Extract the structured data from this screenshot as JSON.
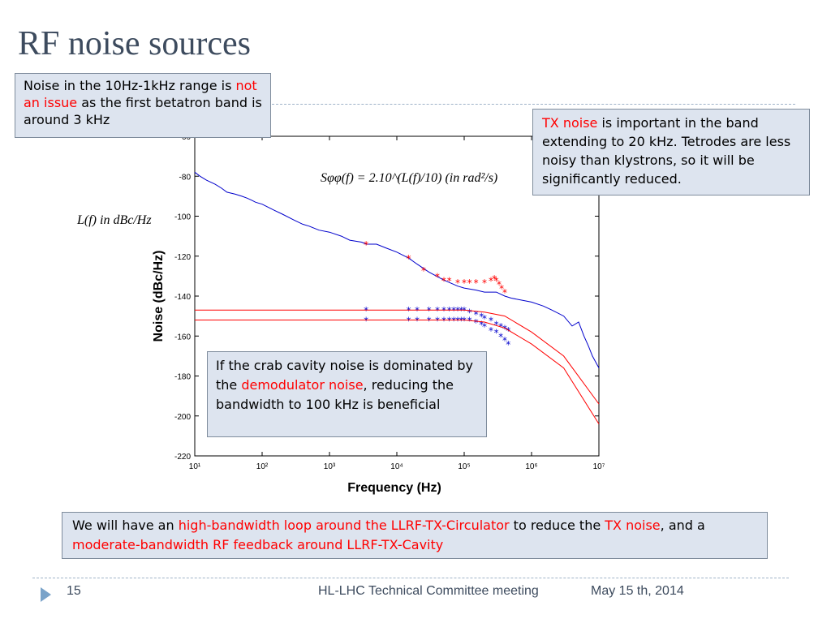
{
  "slide": {
    "title": "RF noise sources",
    "page_number": "15",
    "meeting": "HL-LHC Technical Committee meeting",
    "date": "May 15 th, 2014"
  },
  "boxes": {
    "noise_range": {
      "a": "Noise in the 10Hz-1kHz range is ",
      "b": "not an issue",
      "c": " as the first betatron band is around 3 kHz"
    },
    "tx_noise": {
      "a": "TX noise",
      "b": " is important in the band extending to 20 kHz. Tetrodes are less noisy than klystrons, so it will be significantly reduced."
    },
    "crab_cavity": {
      "a": "If the crab cavity noise is dominated by the ",
      "b": "demodulator noise",
      "c": ", reducing the bandwidth to 100 kHz is beneficial"
    },
    "bottom": {
      "a": "We will have an ",
      "b": "high-bandwidth loop around the LLRF-TX-Circulator",
      "c": " to reduce the ",
      "d": "TX noise",
      "e": ", and a ",
      "f": "moderate-bandwidth RF feedback around LLRF-TX-Cavity"
    }
  },
  "colors": {
    "accent_red": "#ff0000",
    "box_bg": "#dde4ef",
    "title": "#3d4b5e",
    "series_blue": "#0000cc",
    "series_red": "#ff0000"
  },
  "chart_data": {
    "type": "line",
    "xscale": "log",
    "xlim": [
      10,
      10000000
    ],
    "ylim": [
      -220,
      -60
    ],
    "xlabel": "Frequency (Hz)",
    "ylabel": "Noise (dBc/Hz)",
    "x_tick_labels": [
      "10¹",
      "10²",
      "10³",
      "10⁴",
      "10⁵",
      "10⁶",
      "10⁷"
    ],
    "y_tick_labels": [
      "-60",
      "-80",
      "-100",
      "-120",
      "-140",
      "-160",
      "-180",
      "-200",
      "-220"
    ],
    "formulas": {
      "sphi": "Sφφ(f) = 2.10^(L(f)/10) (in rad²/s)",
      "lf": "L(f) in dBc/Hz"
    },
    "series": [
      {
        "color": "#0000cc",
        "x": [
          10,
          12,
          15,
          20,
          25,
          30,
          40,
          50,
          60,
          70,
          80,
          100,
          150,
          200,
          300,
          400,
          500,
          700,
          1000,
          1500,
          2000,
          3000,
          3500,
          5000,
          7000,
          10000,
          15000,
          20000,
          30000,
          50000,
          80000,
          100000,
          150000,
          200000,
          300000,
          400000,
          500000,
          700000,
          1000000,
          1500000,
          2000000,
          3000000,
          4000000,
          5000000,
          6000000,
          7000000,
          8000000,
          10000000
        ],
        "y": [
          -78,
          -80,
          -82,
          -84,
          -86,
          -88,
          -89,
          -90,
          -91,
          -92,
          -93,
          -94,
          -97,
          -99,
          -102,
          -104,
          -105,
          -107,
          -108,
          -110,
          -112,
          -113,
          -114,
          -114,
          -116,
          -118,
          -121,
          -124,
          -128,
          -132,
          -135,
          -136,
          -137,
          -138,
          -138,
          -140,
          -141,
          -142,
          -143,
          -145,
          -147,
          -150,
          -155,
          -153,
          -160,
          -165,
          -170,
          -176
        ]
      },
      {
        "color": "#ff0000",
        "marker": "*",
        "x": [
          3500,
          15000,
          25000,
          40000,
          50000,
          60000,
          80000,
          100000,
          120000,
          150000,
          200000,
          250000,
          280000,
          300000,
          330000,
          360000,
          400000
        ],
        "y": [
          -114,
          -121,
          -127,
          -130,
          -132,
          -132,
          -133,
          -133,
          -133,
          -133,
          -133,
          -132,
          -131,
          -132,
          -134,
          -136,
          -138
        ]
      },
      {
        "color": "#0000cc",
        "marker": "*",
        "x": [
          3500,
          15000,
          20000,
          30000,
          40000,
          50000,
          60000,
          70000,
          80000,
          90000,
          100000,
          120000,
          150000,
          180000,
          200000,
          250000,
          300000,
          350000,
          400000,
          450000
        ],
        "y": [
          -147,
          -147,
          -147,
          -147,
          -147,
          -147,
          -147,
          -147,
          -147,
          -147,
          -147,
          -148,
          -149,
          -150,
          -151,
          -152,
          -154,
          -155,
          -156,
          -157
        ]
      },
      {
        "color": "#0000cc",
        "marker": "*",
        "x": [
          3500,
          15000,
          20000,
          30000,
          40000,
          50000,
          60000,
          70000,
          80000,
          90000,
          100000,
          120000,
          150000,
          180000,
          200000,
          250000,
          300000,
          350000,
          400000,
          450000
        ],
        "y": [
          -152,
          -152,
          -152,
          -152,
          -152,
          -152,
          -152,
          -152,
          -152,
          -152,
          -152,
          -152,
          -153,
          -154,
          -155,
          -157,
          -158,
          -160,
          -162,
          -164
        ]
      },
      {
        "color": "#ff0000",
        "x": [
          10,
          100000,
          200000,
          400000,
          1000000,
          3000000,
          10000000
        ],
        "y": [
          -147,
          -147,
          -148,
          -150,
          -158,
          -170,
          -194
        ]
      },
      {
        "color": "#ff0000",
        "x": [
          10,
          100000,
          200000,
          400000,
          1000000,
          3000000,
          10000000
        ],
        "y": [
          -152,
          -152,
          -153,
          -156,
          -164,
          -176,
          -204
        ]
      }
    ]
  }
}
